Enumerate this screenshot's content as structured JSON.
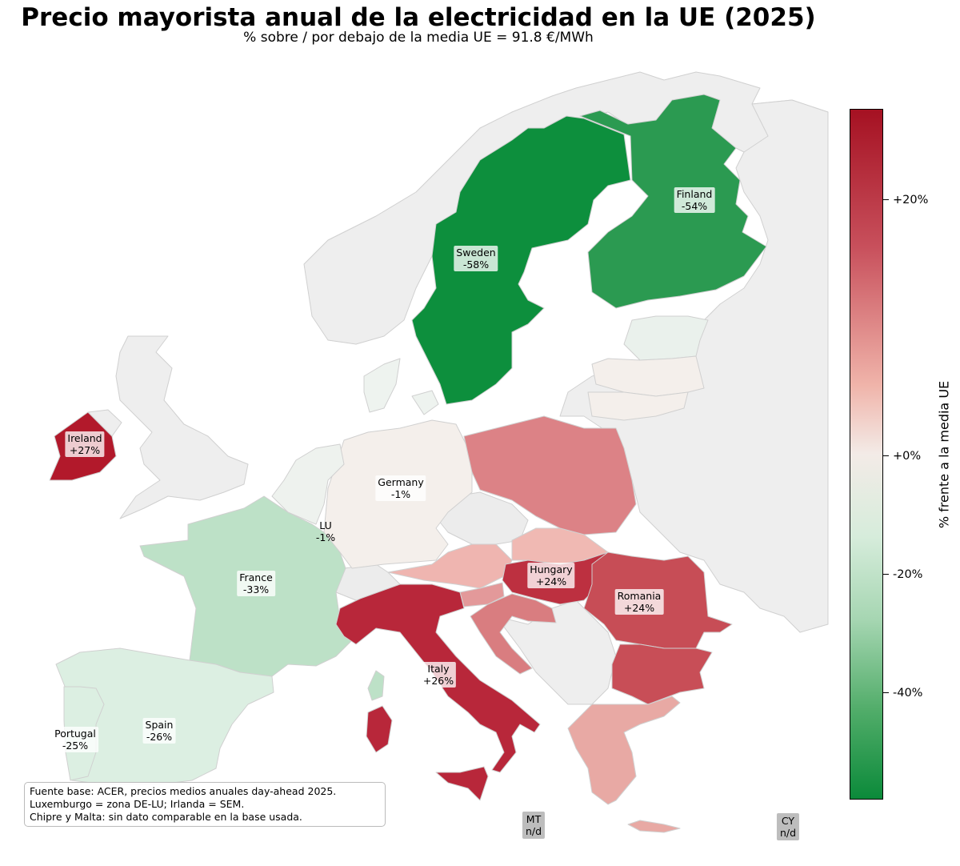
{
  "title": "Precio mayorista anual de la electricidad en la UE (2025)",
  "subtitle": "% sobre / por debajo de la media UE = 91.8 €/MWh",
  "colorbar": {
    "label": "% frente a la media UE",
    "ticks": [
      "+20%",
      "+0%",
      "-20%",
      "-40%"
    ],
    "colors": {
      "max": "#a51122",
      "zero": "#f3ebe7",
      "min": "#0b8a3a"
    }
  },
  "colors": {
    "no_data": "#eeeeee",
    "border": "#d0d0d0",
    "sea": "#ffffff"
  },
  "countries": [
    {
      "name": "Ireland",
      "value": "+27%",
      "color": "#b2192b"
    },
    {
      "name": "Germany",
      "value": "-1%",
      "color": "#f4efeb"
    },
    {
      "name": "LU",
      "value": "-1%",
      "color": "#f4efeb"
    },
    {
      "name": "France",
      "value": "-33%",
      "color": "#bde1c7"
    },
    {
      "name": "Spain",
      "value": "-26%",
      "color": "#dcefe2"
    },
    {
      "name": "Portugal",
      "value": "-25%",
      "color": "#dcefe2"
    },
    {
      "name": "Italy",
      "value": "+26%",
      "color": "#b8273a"
    },
    {
      "name": "Hungary",
      "value": "+24%",
      "color": "#bd3040"
    },
    {
      "name": "Romania",
      "value": "+24%",
      "color": "#c74d56"
    },
    {
      "name": "Sweden",
      "value": "-58%",
      "color": "#0d8f3d"
    },
    {
      "name": "Finland",
      "value": "-54%",
      "color": "#2b9a51"
    },
    {
      "name": "MT",
      "value": "n/d",
      "color": "#bdbdbd"
    },
    {
      "name": "CY",
      "value": "n/d",
      "color": "#bdbdbd"
    }
  ],
  "other_colors": {
    "poland": "#dc8286",
    "austria": "#efb5b0",
    "slovakia": "#f0b9b3",
    "croatia": "#d97d80",
    "slovenia": "#e3999a",
    "bulgaria": "#c84e57",
    "greece": "#e8a9a4",
    "estonia": "#eaf1ec",
    "latvia_lithuania": "#f4efeb",
    "denmark": "#eef3ef",
    "netherlands_belgium": "#eef2ee",
    "czechia": "#ececec"
  },
  "source_note": [
    "Fuente base: ACER, precios medios anuales day-ahead 2025.",
    "Luxemburgo = zona DE-LU; Irlanda = SEM.",
    "Chipre y Malta: sin dato comparable en la base usada."
  ]
}
